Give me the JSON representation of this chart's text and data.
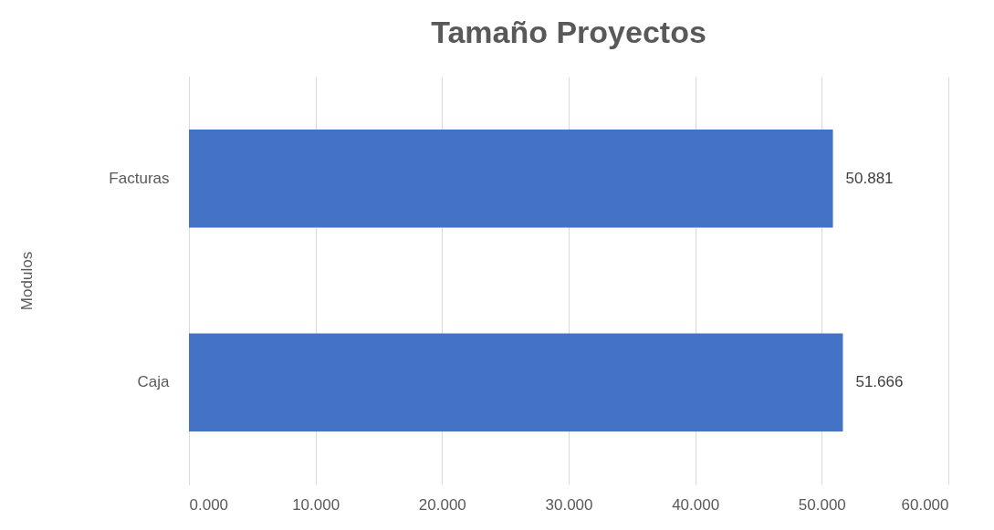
{
  "chart_data": {
    "type": "bar",
    "orientation": "horizontal",
    "title": "Tamaño Proyectos",
    "ylabel": "Modulos",
    "categories": [
      "Facturas",
      "Caja"
    ],
    "values": [
      50.881,
      51.666
    ],
    "color": "#4472c4",
    "xlim": [
      0,
      60
    ],
    "xticks": [
      {
        "value": 0,
        "label": "0.000"
      },
      {
        "value": 10,
        "label": "10.000"
      },
      {
        "value": 20,
        "label": "20.000"
      },
      {
        "value": 30,
        "label": "30.000"
      },
      {
        "value": 40,
        "label": "40.000"
      },
      {
        "value": 50,
        "label": "50.000"
      },
      {
        "value": 60,
        "label": "60.000"
      }
    ],
    "grid": "x",
    "data_labels": true
  }
}
